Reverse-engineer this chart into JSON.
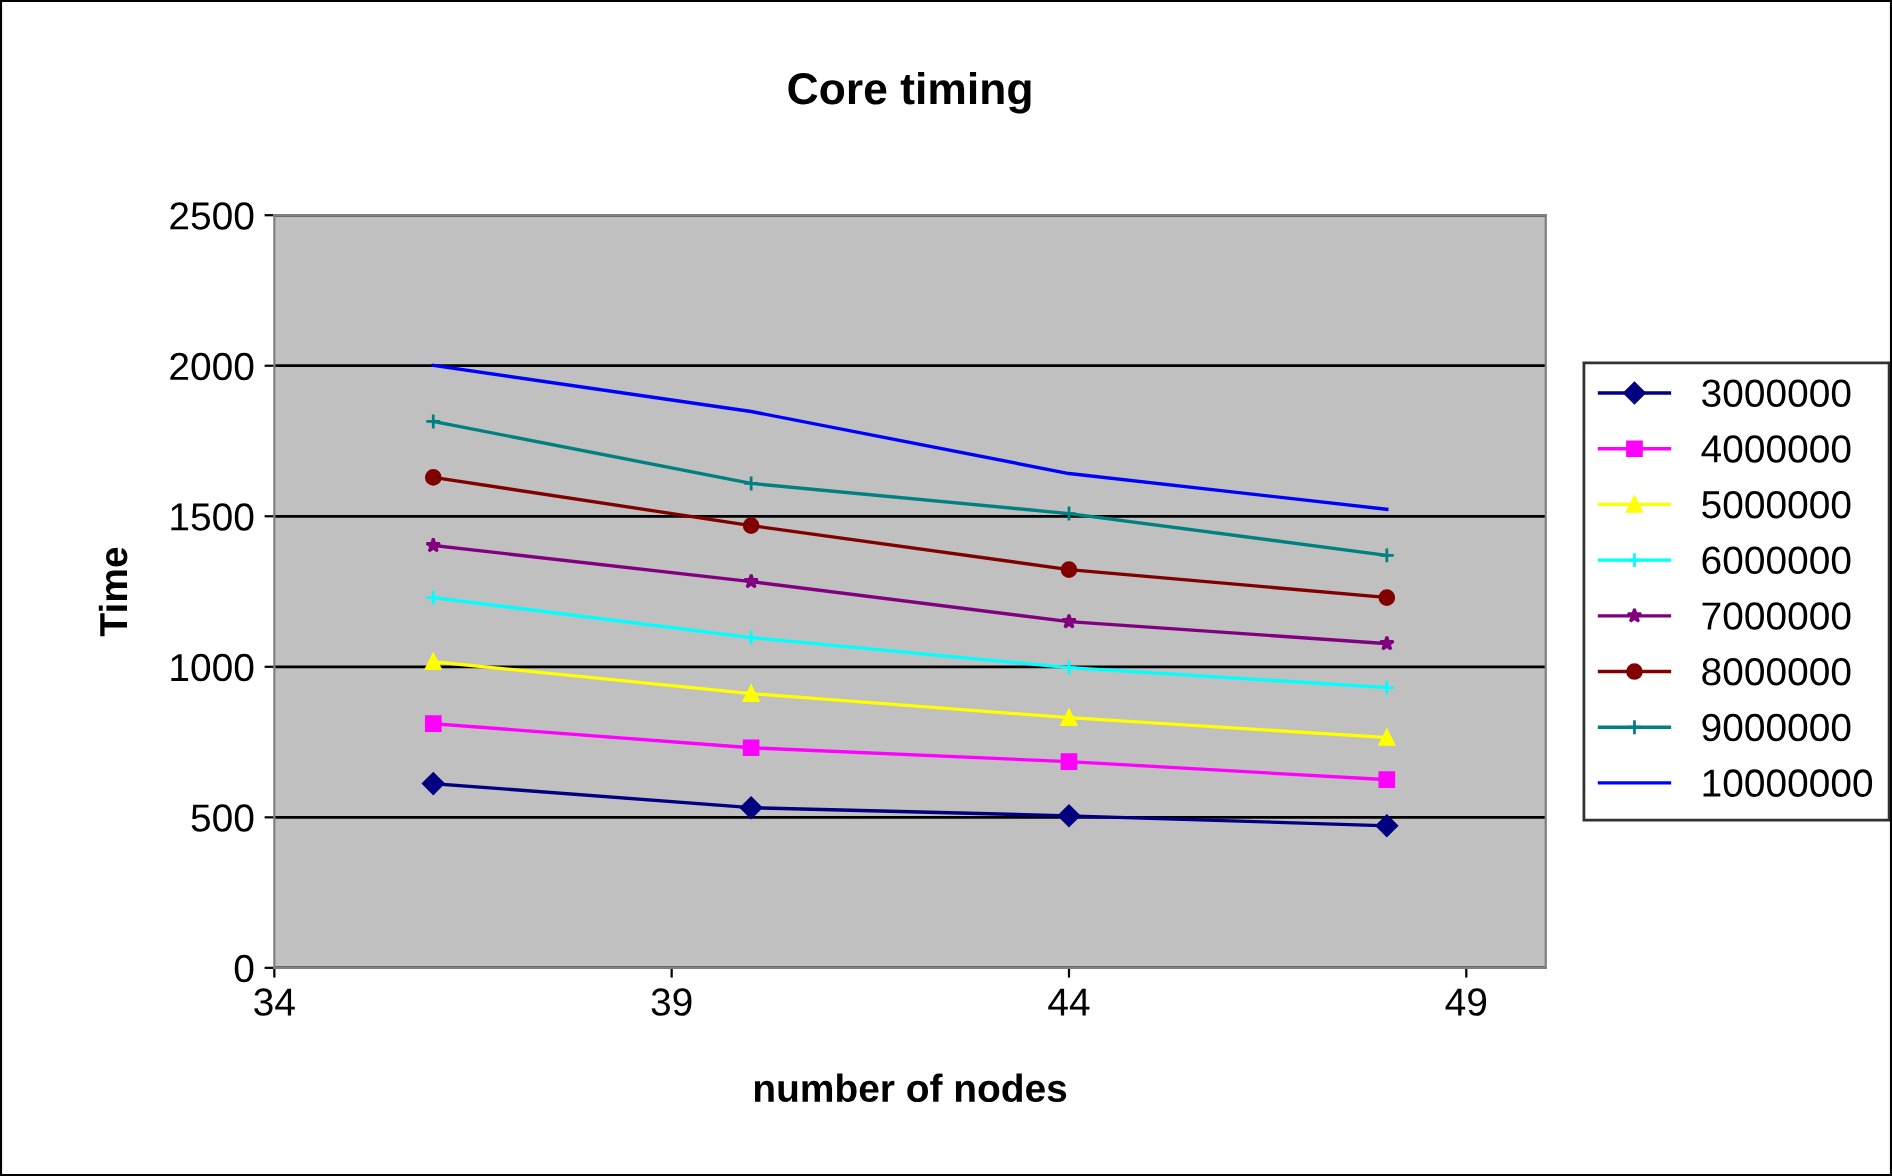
{
  "chart_data": {
    "type": "line",
    "title": "Core timing",
    "xlabel": "number of nodes",
    "ylabel": "Time",
    "x": [
      36,
      40,
      44,
      48
    ],
    "xlim": [
      34,
      50
    ],
    "xticks": [
      34,
      39,
      44,
      49
    ],
    "ylim": [
      0,
      2500
    ],
    "yticks": [
      0,
      500,
      1000,
      1500,
      2000,
      2500
    ],
    "grid": "y",
    "legend": "right",
    "series": [
      {
        "name": "3000000",
        "color": "#000080",
        "marker": "diamond",
        "values": [
          612,
          532,
          505,
          472
        ]
      },
      {
        "name": "4000000",
        "color": "#ff00ff",
        "marker": "square",
        "values": [
          811,
          731,
          685,
          625
        ]
      },
      {
        "name": "5000000",
        "color": "#ffff00",
        "marker": "triangle",
        "values": [
          1017,
          911,
          831,
          765
        ]
      },
      {
        "name": "6000000",
        "color": "#00ffff",
        "marker": "cross",
        "values": [
          1230,
          1097,
          997,
          931
        ]
      },
      {
        "name": "7000000",
        "color": "#800080",
        "marker": "star",
        "values": [
          1403,
          1283,
          1150,
          1077
        ]
      },
      {
        "name": "8000000",
        "color": "#800000",
        "marker": "circle",
        "values": [
          1629,
          1469,
          1323,
          1230
        ]
      },
      {
        "name": "9000000",
        "color": "#008080",
        "marker": "cross",
        "values": [
          1815,
          1609,
          1509,
          1370
        ]
      },
      {
        "name": "10000000",
        "color": "#0000ff",
        "marker": "none",
        "values": [
          2001,
          1848,
          1642,
          1523
        ]
      }
    ]
  }
}
